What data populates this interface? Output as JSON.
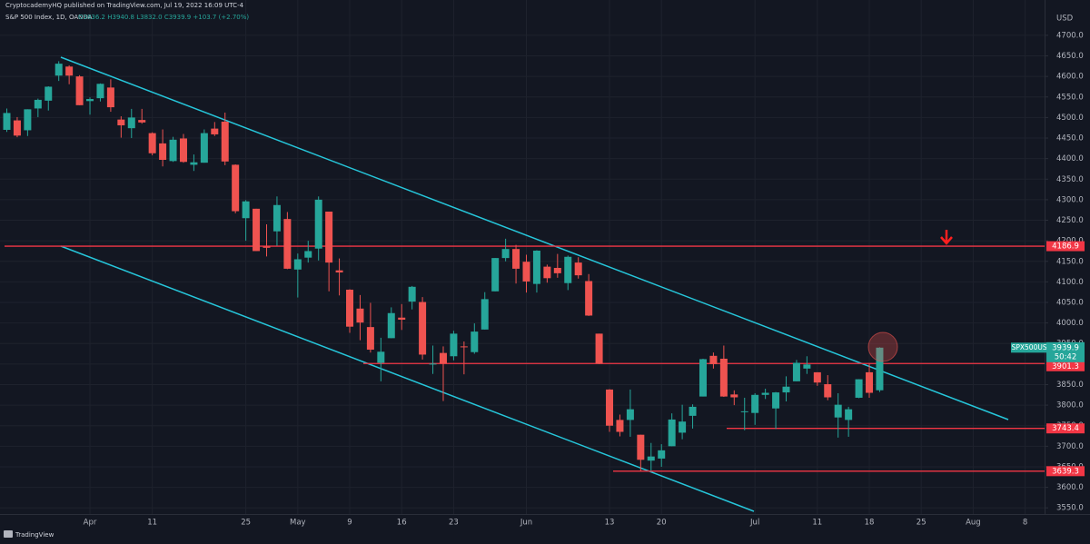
{
  "header": {
    "publisher": "CryptocademyHQ published on TradingView.com, Jul 19, 2022 16:09 UTC-4",
    "symbol_title": "S&P 500 Index, 1D, OANDA",
    "ohlc": "O3836.2 H3940.8 L3832.0 C3939.9 +103.7 (+2.70%)"
  },
  "footer": "TradingView",
  "chart_data": {
    "type": "candlestick",
    "currency": "USD",
    "up_color": "#26a69a",
    "down_color": "#ef5350",
    "grid": true,
    "ylim": [
      3535,
      4786
    ],
    "yticks": [
      {
        "value": 3550,
        "label": "3550.0"
      },
      {
        "value": 3600,
        "label": "3600.0"
      },
      {
        "value": 3650,
        "label": "3650.0"
      },
      {
        "value": 3700,
        "label": "3700.0"
      },
      {
        "value": 3750,
        "label": "3750.0"
      },
      {
        "value": 3800,
        "label": "3800.0"
      },
      {
        "value": 3850,
        "label": "3850.0"
      },
      {
        "value": 3900,
        "label": "3900.0"
      },
      {
        "value": 3950,
        "label": "3950.0"
      },
      {
        "value": 4000,
        "label": "4000.0"
      },
      {
        "value": 4050,
        "label": "4050.0"
      },
      {
        "value": 4100,
        "label": "4100.0"
      },
      {
        "value": 4150,
        "label": "4150.0"
      },
      {
        "value": 4200,
        "label": "4200.0"
      },
      {
        "value": 4250,
        "label": "4250.0"
      },
      {
        "value": 4300,
        "label": "4300.0"
      },
      {
        "value": 4350,
        "label": "4350.0"
      },
      {
        "value": 4400,
        "label": "4400.0"
      },
      {
        "value": 4450,
        "label": "4450.0"
      },
      {
        "value": 4500,
        "label": "4500.0"
      },
      {
        "value": 4550,
        "label": "4550.0"
      },
      {
        "value": 4600,
        "label": "4600.0"
      },
      {
        "value": 4650,
        "label": "4650.0"
      },
      {
        "value": 4700,
        "label": "4700.0"
      }
    ],
    "categories": [
      null,
      null,
      null,
      null,
      null,
      null,
      null,
      null,
      "Apr",
      null,
      null,
      null,
      null,
      null,
      "11",
      null,
      null,
      null,
      null,
      null,
      null,
      null,
      null,
      "25",
      null,
      null,
      null,
      null,
      "May",
      null,
      null,
      null,
      null,
      "9",
      null,
      null,
      null,
      null,
      "16",
      null,
      null,
      null,
      null,
      "23",
      null,
      null,
      null,
      null,
      null,
      null,
      "Jun",
      null,
      null,
      null,
      null,
      null,
      null,
      null,
      "13",
      null,
      null,
      null,
      null,
      "20",
      null,
      null,
      null,
      null,
      null,
      null,
      null,
      null,
      "Jul",
      null,
      null,
      null,
      null,
      null,
      "11",
      null,
      null,
      null,
      null,
      "18",
      null,
      null,
      null,
      null,
      "25",
      null,
      null,
      null,
      null,
      "Aug",
      null,
      null,
      null,
      null,
      "8",
      null,
      null
    ],
    "open": [
      4470,
      4493,
      4469,
      4522,
      4541,
      4602,
      4624,
      4600,
      4540,
      4547,
      4573,
      4495,
      4474,
      4494,
      4462,
      4437,
      4394,
      4449,
      4385,
      4390,
      4473,
      4490,
      4385,
      4255,
      4278,
      4186,
      4223,
      4253,
      4130,
      4159,
      4181,
      4271,
      4128,
      4081,
      4035,
      3990,
      3903,
      3963,
      4013,
      4052,
      4051,
      3900,
      3927,
      3919,
      3943,
      3929,
      3984,
      4077,
      4158,
      4180,
      4149,
      4095,
      4137,
      4134,
      4097,
      4147,
      4102,
      3974,
      3838,
      3764,
      3764,
      3728,
      3665,
      3670,
      3700,
      3733,
      3774,
      3821,
      3920,
      3913,
      3826,
      3785,
      3781,
      3825,
      3792,
      3831,
      3858,
      3889,
      3880,
      3851,
      3770,
      3764,
      3818,
      3880,
      3836.2,
      null,
      null,
      null,
      null,
      null,
      null,
      null,
      null,
      null,
      null,
      null,
      null,
      null,
      null,
      null,
      null
    ],
    "high": [
      4522,
      4501,
      4520,
      4546,
      4576,
      4637,
      4627,
      4603,
      4549,
      4583,
      4593,
      4503,
      4521,
      4521,
      4464,
      4471,
      4453,
      4460,
      4410,
      4471,
      4489,
      4512,
      4386,
      4299,
      4278,
      4240,
      4308,
      4270,
      4169,
      4200,
      4308,
      4271,
      4157,
      4082,
      4068,
      4049,
      3964,
      4038,
      4046,
      4090,
      4063,
      3945,
      3943,
      3981,
      3955,
      3999,
      4075,
      4158,
      4205,
      4190,
      4166,
      4177,
      4142,
      4168,
      4164,
      4160,
      4119,
      3974,
      3839,
      3777,
      3838,
      3728,
      3708,
      3705,
      3780,
      3801,
      3802,
      3913,
      3928,
      3945,
      3836,
      3818,
      3829,
      3840,
      3832,
      3870,
      3910,
      3919,
      3880,
      3873,
      3829,
      3796,
      3863,
      3902,
      3940.8,
      null,
      null,
      null,
      null,
      null,
      null,
      null,
      null,
      null,
      null,
      null,
      null,
      null,
      null,
      null,
      null
    ],
    "low": [
      4465,
      4452,
      4455,
      4501,
      4517,
      4589,
      4581,
      4530,
      4507,
      4539,
      4514,
      4451,
      4450,
      4485,
      4408,
      4381,
      4392,
      4390,
      4370,
      4390,
      4455,
      4384,
      4267,
      4200,
      4175,
      4162,
      4188,
      4131,
      4062,
      4147,
      4152,
      4077,
      4067,
      3976,
      3958,
      3928,
      3858,
      3963,
      3983,
      4033,
      3911,
      3876,
      3810,
      3909,
      3875,
      3925,
      3984,
      4077,
      4150,
      4096,
      4074,
      4074,
      4098,
      4110,
      4080,
      4108,
      4017,
      3900,
      3735,
      3724,
      3723,
      3639,
      3640,
      3650,
      3700,
      3717,
      3743,
      3821,
      3889,
      3820,
      3800,
      3739,
      3752,
      3815,
      3742,
      3809,
      3858,
      3876,
      3847,
      3812,
      3721,
      3723,
      3817,
      3818,
      3832,
      null,
      null,
      null,
      null,
      null,
      null,
      null,
      null,
      null,
      null,
      null,
      null,
      null,
      null,
      null,
      null
    ],
    "close": [
      4511,
      4456,
      4520,
      4543,
      4575,
      4631,
      4602,
      4530,
      4545,
      4582,
      4525,
      4481,
      4500,
      4488,
      4413,
      4397,
      4446,
      4392,
      4391,
      4462,
      4459,
      4393,
      4272,
      4296,
      4175,
      4183,
      4287,
      4132,
      4155,
      4175,
      4300,
      4147,
      4123,
      3991,
      4001,
      3935,
      3930,
      4024,
      4008,
      4088,
      3923,
      3901,
      3901,
      3974,
      3941,
      3979,
      4058,
      4158,
      4180,
      4132,
      4101,
      4176,
      4109,
      4121,
      4161,
      4116,
      4018,
      3901,
      3750,
      3735,
      3790,
      3667,
      3675,
      3690,
      3765,
      3760,
      3796,
      3912,
      3900,
      3821,
      3819,
      3785,
      3825,
      3830,
      3831,
      3845,
      3903,
      3899,
      3855,
      3819,
      3801,
      3790,
      3863,
      3830,
      3939.9,
      null,
      null,
      null,
      null,
      null,
      null,
      null,
      null,
      null,
      null,
      null,
      null,
      null,
      null,
      null,
      null
    ],
    "levels": [
      {
        "value": 4186.9,
        "color": "#f23645"
      },
      {
        "value": 3901.3,
        "color": "#f23645"
      },
      {
        "value": 3743.4,
        "color": "#f23645"
      },
      {
        "value": 3639.3,
        "color": "#f23645"
      }
    ],
    "last_price": {
      "symbol": "SPX500USD",
      "value": 3939.9,
      "countdown": "50:42",
      "color": "#26a69a"
    }
  }
}
